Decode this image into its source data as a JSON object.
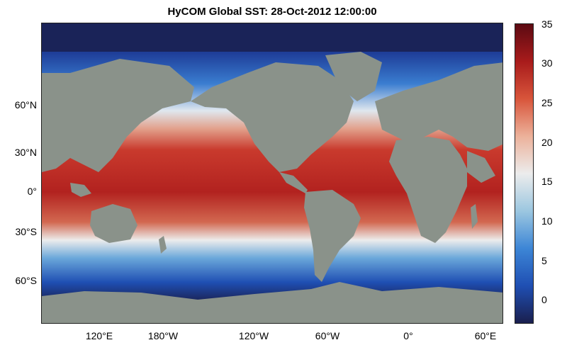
{
  "title": "HyCOM Global SST: 28-Oct-2012 12:00:00",
  "map": {
    "latitude_labels": [
      "60°N",
      "30°N",
      "0°",
      "30°S",
      "60°S"
    ],
    "longitude_labels": [
      "120°E",
      "180°W",
      "120°W",
      "60°W",
      "0°",
      "60°E"
    ],
    "land_color": "#8a928a",
    "variable": "sea surface temperature"
  },
  "colorbar": {
    "ticks": [
      "35",
      "30",
      "25",
      "20",
      "15",
      "10",
      "5",
      "0"
    ],
    "range": [
      -3,
      35
    ],
    "colors": [
      "#1a1f4e",
      "#1f4fb3",
      "#3d86d6",
      "#9cc7e0",
      "#ececec",
      "#ecb19a",
      "#d8553b",
      "#a81b1b",
      "#5c0a12"
    ]
  }
}
